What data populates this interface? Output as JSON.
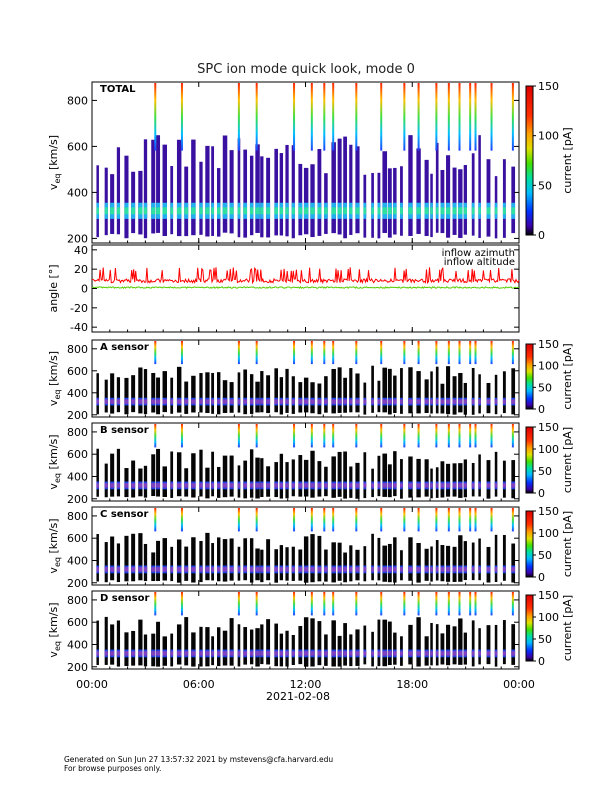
{
  "chart_data": {
    "title": "SPC ion mode quick look, mode 0",
    "x_axis": {
      "range_hours": [
        0,
        24
      ],
      "tick_hours": [
        0,
        6,
        12,
        18,
        24
      ],
      "tick_labels": [
        "00:00",
        "06:00",
        "12:00",
        "18:00",
        "00:00"
      ],
      "date_label": "2021-02-08"
    },
    "panels": [
      {
        "type": "heatmap",
        "label": "TOTAL",
        "ylabel": "v",
        "ylabel_sub": "eq",
        "ylabel_unit": " [km/s]",
        "ylim": [
          180,
          880
        ],
        "yticks": [
          200,
          400,
          600,
          800
        ],
        "colorbar": {
          "label": "current [pA]",
          "range": [
            0,
            150
          ],
          "ticks": [
            0,
            50,
            100,
            150
          ]
        },
        "core_velocity_kms": [
          300,
          330
        ],
        "high_energy_hours": [
          3.5,
          5.0,
          8.2,
          9.2,
          11.3,
          12.3,
          13.0,
          13.5,
          14.8,
          16.2,
          17.5,
          18.3,
          19.3,
          20.0,
          20.6,
          21.2,
          21.5,
          22.4,
          23.6
        ]
      },
      {
        "type": "line",
        "ylabel": "angle [°]",
        "ylim": [
          -45,
          45
        ],
        "yticks": [
          -40,
          -20,
          0,
          20,
          40
        ],
        "series": [
          {
            "name": "inflow azimuth",
            "color": "#ff0000",
            "typical_value": 8,
            "spike_value": 20
          },
          {
            "name": "inflow altitude",
            "color": "#55cc00",
            "typical_value": 1
          }
        ]
      },
      {
        "type": "heatmap",
        "label": "A sensor",
        "ylabel": "v",
        "ylabel_sub": "eq",
        "ylabel_unit": " [km/s]",
        "ylim": [
          180,
          880
        ],
        "yticks": [
          200,
          400,
          600,
          800
        ],
        "colorbar": {
          "label": "current [pA]",
          "range": [
            0,
            150
          ],
          "ticks": [
            0,
            50,
            100,
            150
          ]
        }
      },
      {
        "type": "heatmap",
        "label": "B sensor",
        "ylabel": "v",
        "ylabel_sub": "eq",
        "ylabel_unit": " [km/s]",
        "ylim": [
          180,
          880
        ],
        "yticks": [
          200,
          400,
          600,
          800
        ],
        "colorbar": {
          "label": "current [pA]",
          "range": [
            0,
            150
          ],
          "ticks": [
            0,
            50,
            100,
            150
          ]
        }
      },
      {
        "type": "heatmap",
        "label": "C sensor",
        "ylabel": "v",
        "ylabel_sub": "eq",
        "ylabel_unit": " [km/s]",
        "ylim": [
          180,
          880
        ],
        "yticks": [
          200,
          400,
          600,
          800
        ],
        "colorbar": {
          "label": "current [pA]",
          "range": [
            0,
            150
          ],
          "ticks": [
            0,
            50,
            100,
            150
          ]
        }
      },
      {
        "type": "heatmap",
        "label": "D sensor",
        "ylabel": "v",
        "ylabel_sub": "eq",
        "ylabel_unit": " [km/s]",
        "ylim": [
          180,
          880
        ],
        "yticks": [
          200,
          400,
          600,
          800
        ],
        "colorbar": {
          "label": "current [pA]",
          "range": [
            0,
            150
          ],
          "ticks": [
            0,
            50,
            100,
            150
          ]
        }
      }
    ]
  },
  "footer": {
    "line1": "Generated on Sun Jun 27 13:57:32 2021 by mstevens@cfa.harvard.edu",
    "line2": "For browse purposes only."
  }
}
